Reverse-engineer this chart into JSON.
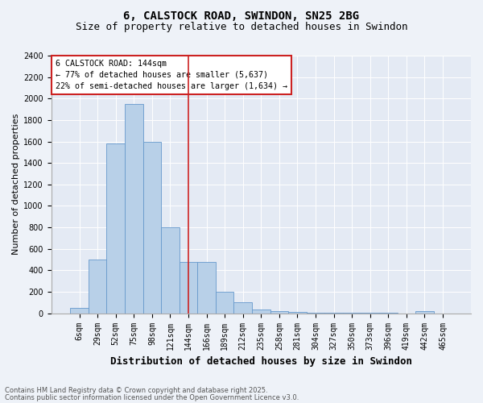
{
  "title1": "6, CALSTOCK ROAD, SWINDON, SN25 2BG",
  "title2": "Size of property relative to detached houses in Swindon",
  "xlabel": "Distribution of detached houses by size in Swindon",
  "ylabel": "Number of detached properties",
  "categories": [
    "6sqm",
    "29sqm",
    "52sqm",
    "75sqm",
    "98sqm",
    "121sqm",
    "144sqm",
    "166sqm",
    "189sqm",
    "212sqm",
    "235sqm",
    "258sqm",
    "281sqm",
    "304sqm",
    "327sqm",
    "350sqm",
    "373sqm",
    "396sqm",
    "419sqm",
    "442sqm",
    "465sqm"
  ],
  "values": [
    50,
    500,
    1580,
    1950,
    1600,
    800,
    480,
    480,
    200,
    100,
    35,
    20,
    12,
    8,
    5,
    4,
    3,
    2,
    0,
    20,
    0
  ],
  "bar_color": "#b8d0e8",
  "bar_edge_color": "#6699cc",
  "vline_color": "#cc2222",
  "vline_x": 6.0,
  "annotation_text": "6 CALSTOCK ROAD: 144sqm\n← 77% of detached houses are smaller (5,637)\n22% of semi-detached houses are larger (1,634) →",
  "annotation_box_color": "#cc2222",
  "ylim": [
    0,
    2400
  ],
  "yticks": [
    0,
    200,
    400,
    600,
    800,
    1000,
    1200,
    1400,
    1600,
    1800,
    2000,
    2200,
    2400
  ],
  "footer1": "Contains HM Land Registry data © Crown copyright and database right 2025.",
  "footer2": "Contains public sector information licensed under the Open Government Licence v3.0.",
  "bg_color": "#eef2f8",
  "plot_bg_color": "#e4eaf4",
  "title1_fontsize": 10,
  "title2_fontsize": 9,
  "xlabel_fontsize": 9,
  "ylabel_fontsize": 8,
  "tick_fontsize": 7,
  "footer_fontsize": 6
}
